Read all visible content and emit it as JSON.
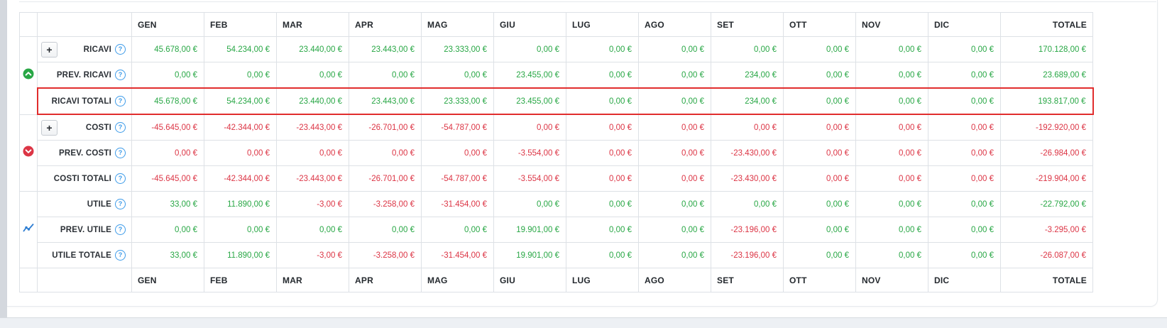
{
  "colors": {
    "positive": "#28a745",
    "negative": "#dc3545",
    "help_icon": "#3d9be9",
    "highlight_border": "#e12d2d",
    "chart_icon": "#2d7dd2"
  },
  "table": {
    "months": [
      "GEN",
      "FEB",
      "MAR",
      "APR",
      "MAG",
      "GIU",
      "LUG",
      "AGO",
      "SET",
      "OTT",
      "NOV",
      "DIC"
    ],
    "total_label": "TOTALE",
    "expander_symbol": "+",
    "help_symbol": "?",
    "groups": [
      {
        "name": "ricavi",
        "icon": "circle-chevron-up-icon",
        "color": "#28a745"
      },
      {
        "name": "costi",
        "icon": "circle-chevron-down-icon",
        "color": "#dc3545"
      },
      {
        "name": "utile",
        "icon": "line-chart-icon",
        "color": "#2d7dd2"
      }
    ],
    "rows": [
      {
        "label": "RICAVI",
        "expander": true,
        "highlight": false,
        "values": [
          "45.678,00 €",
          "54.234,00 €",
          "23.440,00 €",
          "23.443,00 €",
          "23.333,00 €",
          "0,00 €",
          "0,00 €",
          "0,00 €",
          "0,00 €",
          "0,00 €",
          "0,00 €",
          "0,00 €",
          "170.128,00 €"
        ],
        "value_colors": [
          "g",
          "g",
          "g",
          "g",
          "g",
          "g",
          "g",
          "g",
          "g",
          "g",
          "g",
          "g",
          "g"
        ]
      },
      {
        "label": "PREV. RICAVI",
        "expander": false,
        "highlight": false,
        "values": [
          "0,00 €",
          "0,00 €",
          "0,00 €",
          "0,00 €",
          "0,00 €",
          "23.455,00 €",
          "0,00 €",
          "0,00 €",
          "234,00 €",
          "0,00 €",
          "0,00 €",
          "0,00 €",
          "23.689,00 €"
        ],
        "value_colors": [
          "g",
          "g",
          "g",
          "g",
          "g",
          "g",
          "g",
          "g",
          "g",
          "g",
          "g",
          "g",
          "g"
        ]
      },
      {
        "label": "RICAVI TOTALI",
        "expander": false,
        "highlight": true,
        "values": [
          "45.678,00 €",
          "54.234,00 €",
          "23.440,00 €",
          "23.443,00 €",
          "23.333,00 €",
          "23.455,00 €",
          "0,00 €",
          "0,00 €",
          "234,00 €",
          "0,00 €",
          "0,00 €",
          "0,00 €",
          "193.817,00 €"
        ],
        "value_colors": [
          "g",
          "g",
          "g",
          "g",
          "g",
          "g",
          "g",
          "g",
          "g",
          "g",
          "g",
          "g",
          "g"
        ]
      },
      {
        "label": "COSTI",
        "expander": true,
        "highlight": false,
        "values": [
          "-45.645,00 €",
          "-42.344,00 €",
          "-23.443,00 €",
          "-26.701,00 €",
          "-54.787,00 €",
          "0,00 €",
          "0,00 €",
          "0,00 €",
          "0,00 €",
          "0,00 €",
          "0,00 €",
          "0,00 €",
          "-192.920,00 €"
        ],
        "value_colors": [
          "r",
          "r",
          "r",
          "r",
          "r",
          "r",
          "r",
          "r",
          "r",
          "r",
          "r",
          "r",
          "r"
        ]
      },
      {
        "label": "PREV. COSTI",
        "expander": false,
        "highlight": false,
        "values": [
          "0,00 €",
          "0,00 €",
          "0,00 €",
          "0,00 €",
          "0,00 €",
          "-3.554,00 €",
          "0,00 €",
          "0,00 €",
          "-23.430,00 €",
          "0,00 €",
          "0,00 €",
          "0,00 €",
          "-26.984,00 €"
        ],
        "value_colors": [
          "r",
          "r",
          "r",
          "r",
          "r",
          "r",
          "r",
          "r",
          "r",
          "r",
          "r",
          "r",
          "r"
        ]
      },
      {
        "label": "COSTI TOTALI",
        "expander": false,
        "highlight": false,
        "values": [
          "-45.645,00 €",
          "-42.344,00 €",
          "-23.443,00 €",
          "-26.701,00 €",
          "-54.787,00 €",
          "-3.554,00 €",
          "0,00 €",
          "0,00 €",
          "-23.430,00 €",
          "0,00 €",
          "0,00 €",
          "0,00 €",
          "-219.904,00 €"
        ],
        "value_colors": [
          "r",
          "r",
          "r",
          "r",
          "r",
          "r",
          "r",
          "r",
          "r",
          "r",
          "r",
          "r",
          "r"
        ]
      },
      {
        "label": "UTILE",
        "expander": false,
        "highlight": false,
        "values": [
          "33,00 €",
          "11.890,00 €",
          "-3,00 €",
          "-3.258,00 €",
          "-31.454,00 €",
          "0,00 €",
          "0,00 €",
          "0,00 €",
          "0,00 €",
          "0,00 €",
          "0,00 €",
          "0,00 €",
          "-22.792,00 €"
        ],
        "value_colors": [
          "g",
          "g",
          "r",
          "r",
          "r",
          "g",
          "g",
          "g",
          "g",
          "g",
          "g",
          "g",
          "g"
        ]
      },
      {
        "label": "PREV. UTILE",
        "expander": false,
        "highlight": false,
        "values": [
          "0,00 €",
          "0,00 €",
          "0,00 €",
          "0,00 €",
          "0,00 €",
          "19.901,00 €",
          "0,00 €",
          "0,00 €",
          "-23.196,00 €",
          "0,00 €",
          "0,00 €",
          "0,00 €",
          "-3.295,00 €"
        ],
        "value_colors": [
          "g",
          "g",
          "g",
          "g",
          "g",
          "g",
          "g",
          "g",
          "r",
          "g",
          "g",
          "g",
          "r"
        ]
      },
      {
        "label": "UTILE TOTALE",
        "expander": false,
        "highlight": false,
        "values": [
          "33,00 €",
          "11.890,00 €",
          "-3,00 €",
          "-3.258,00 €",
          "-31.454,00 €",
          "19.901,00 €",
          "0,00 €",
          "0,00 €",
          "-23.196,00 €",
          "0,00 €",
          "0,00 €",
          "0,00 €",
          "-26.087,00 €"
        ],
        "value_colors": [
          "g",
          "g",
          "r",
          "r",
          "r",
          "g",
          "g",
          "g",
          "r",
          "g",
          "g",
          "g",
          "r"
        ]
      }
    ]
  }
}
